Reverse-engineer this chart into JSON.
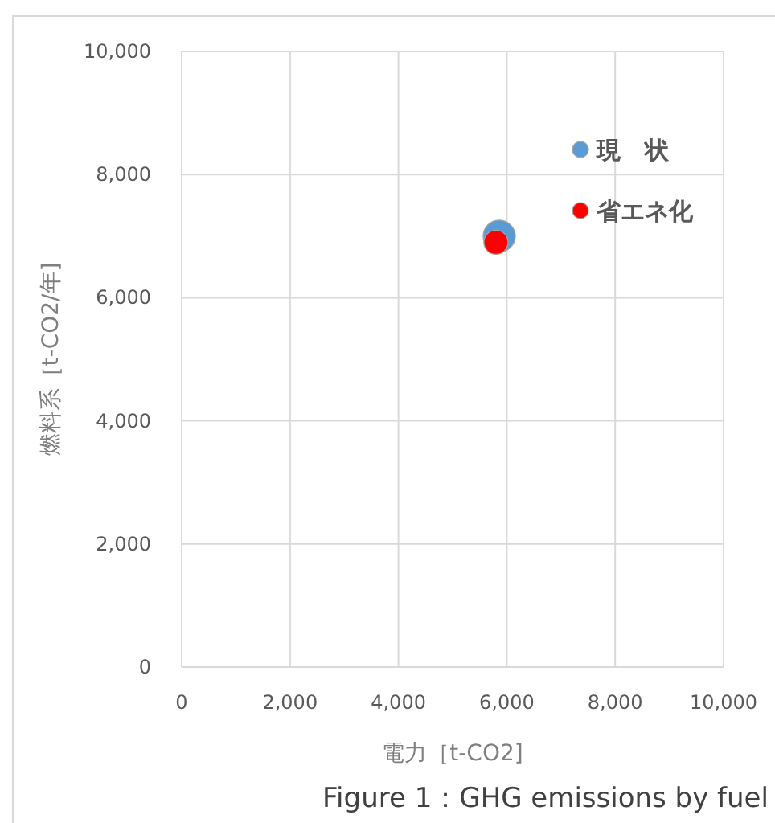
{
  "chart_data": {
    "type": "scatter",
    "xlabel": "電力［t-CO2]",
    "ylabel": "燃料系［t-CO2/年]",
    "series": [
      {
        "name": "現　状",
        "color": "#5b9bd5",
        "x": [
          5860
        ],
        "values": [
          7000
        ]
      },
      {
        "name": "省エネ化",
        "color": "#ff0000",
        "x": [
          5800
        ],
        "values": [
          6900
        ]
      }
    ],
    "xlim": [
      0,
      10000
    ],
    "ylim": [
      0,
      10000
    ],
    "xticks": [
      {
        "value": 0,
        "label": "0"
      },
      {
        "value": 2000,
        "label": "2,000"
      },
      {
        "value": 4000,
        "label": "4,000"
      },
      {
        "value": 6000,
        "label": "6,000"
      },
      {
        "value": 8000,
        "label": "8,000"
      },
      {
        "value": 10000,
        "label": "10,000"
      }
    ],
    "yticks": [
      {
        "value": 0,
        "label": "0"
      },
      {
        "value": 2000,
        "label": "2,000"
      },
      {
        "value": 4000,
        "label": "4,000"
      },
      {
        "value": 6000,
        "label": "6,000"
      },
      {
        "value": 8000,
        "label": "8,000"
      },
      {
        "value": 10000,
        "label": "10,000"
      }
    ],
    "grid": true,
    "legend": "top right",
    "marker": "circle",
    "annotations": [
      "Figure 1：GHG emissions  by fuel"
    ]
  }
}
